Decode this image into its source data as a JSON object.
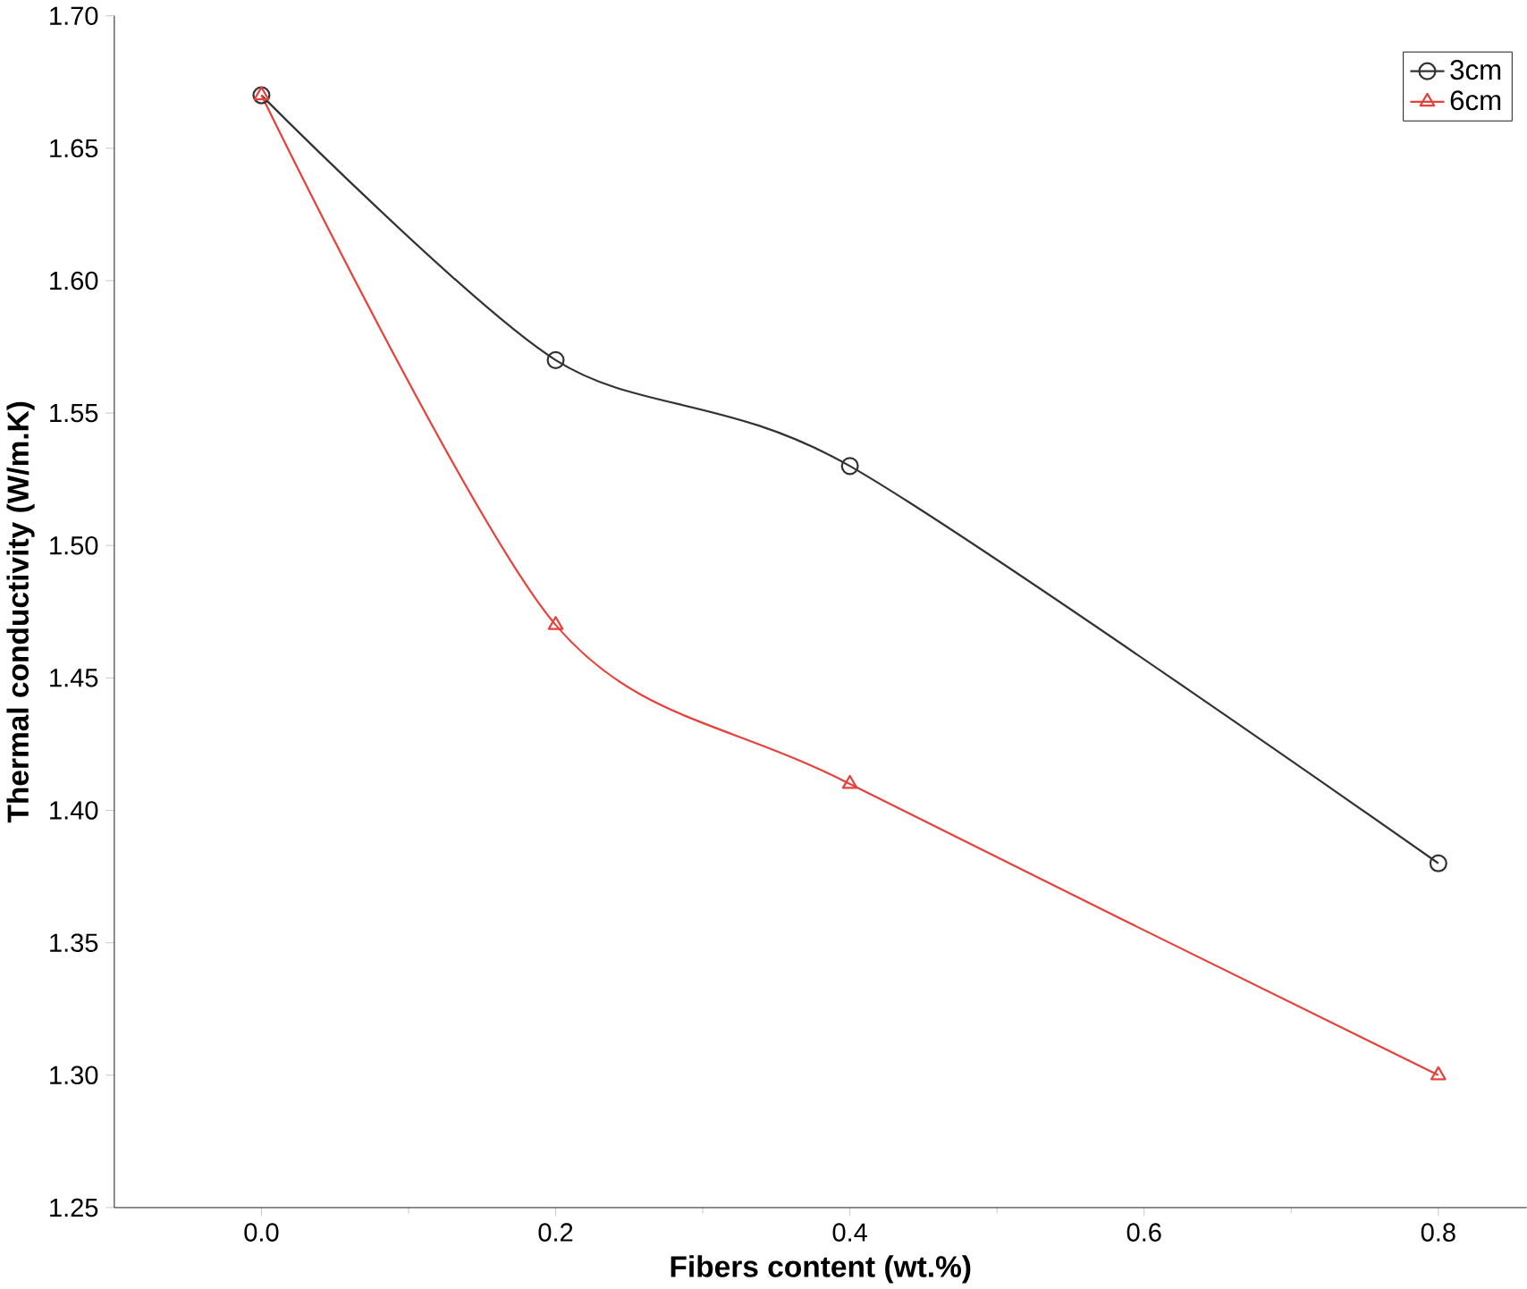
{
  "chart_data": {
    "type": "line",
    "xlabel": "Fibers content (wt.%)",
    "ylabel": "Thermal conductivity (W/m.K)",
    "x": [
      0,
      0.2,
      0.4,
      0.8
    ],
    "series": [
      {
        "name": "3cm",
        "color": "#333333",
        "marker": "circle",
        "values": [
          1.67,
          1.57,
          1.53,
          1.38
        ]
      },
      {
        "name": "6cm",
        "color": "#e8413c",
        "marker": "triangle",
        "values": [
          1.67,
          1.47,
          1.41,
          1.3
        ]
      }
    ],
    "xlim": [
      -0.1,
      0.86
    ],
    "ylim": [
      1.25,
      1.7
    ],
    "xticks": [
      {
        "value": 0,
        "label": "0.0"
      },
      {
        "value": 0.2,
        "label": "0.2"
      },
      {
        "value": 0.4,
        "label": "0.4"
      },
      {
        "value": 0.6,
        "label": "0.6"
      },
      {
        "value": 0.8,
        "label": "0.8"
      }
    ],
    "yticks": [
      {
        "value": 1.25,
        "label": "1.25"
      },
      {
        "value": 1.3,
        "label": "1.30"
      },
      {
        "value": 1.35,
        "label": "1.35"
      },
      {
        "value": 1.4,
        "label": "1.40"
      },
      {
        "value": 1.45,
        "label": "1.45"
      },
      {
        "value": 1.5,
        "label": "1.50"
      },
      {
        "value": 1.55,
        "label": "1.55"
      },
      {
        "value": 1.6,
        "label": "1.60"
      },
      {
        "value": 1.65,
        "label": "1.65"
      },
      {
        "value": 1.7,
        "label": "1.70"
      }
    ],
    "grid": false,
    "legend": "top right",
    "line_style": "solid"
  }
}
